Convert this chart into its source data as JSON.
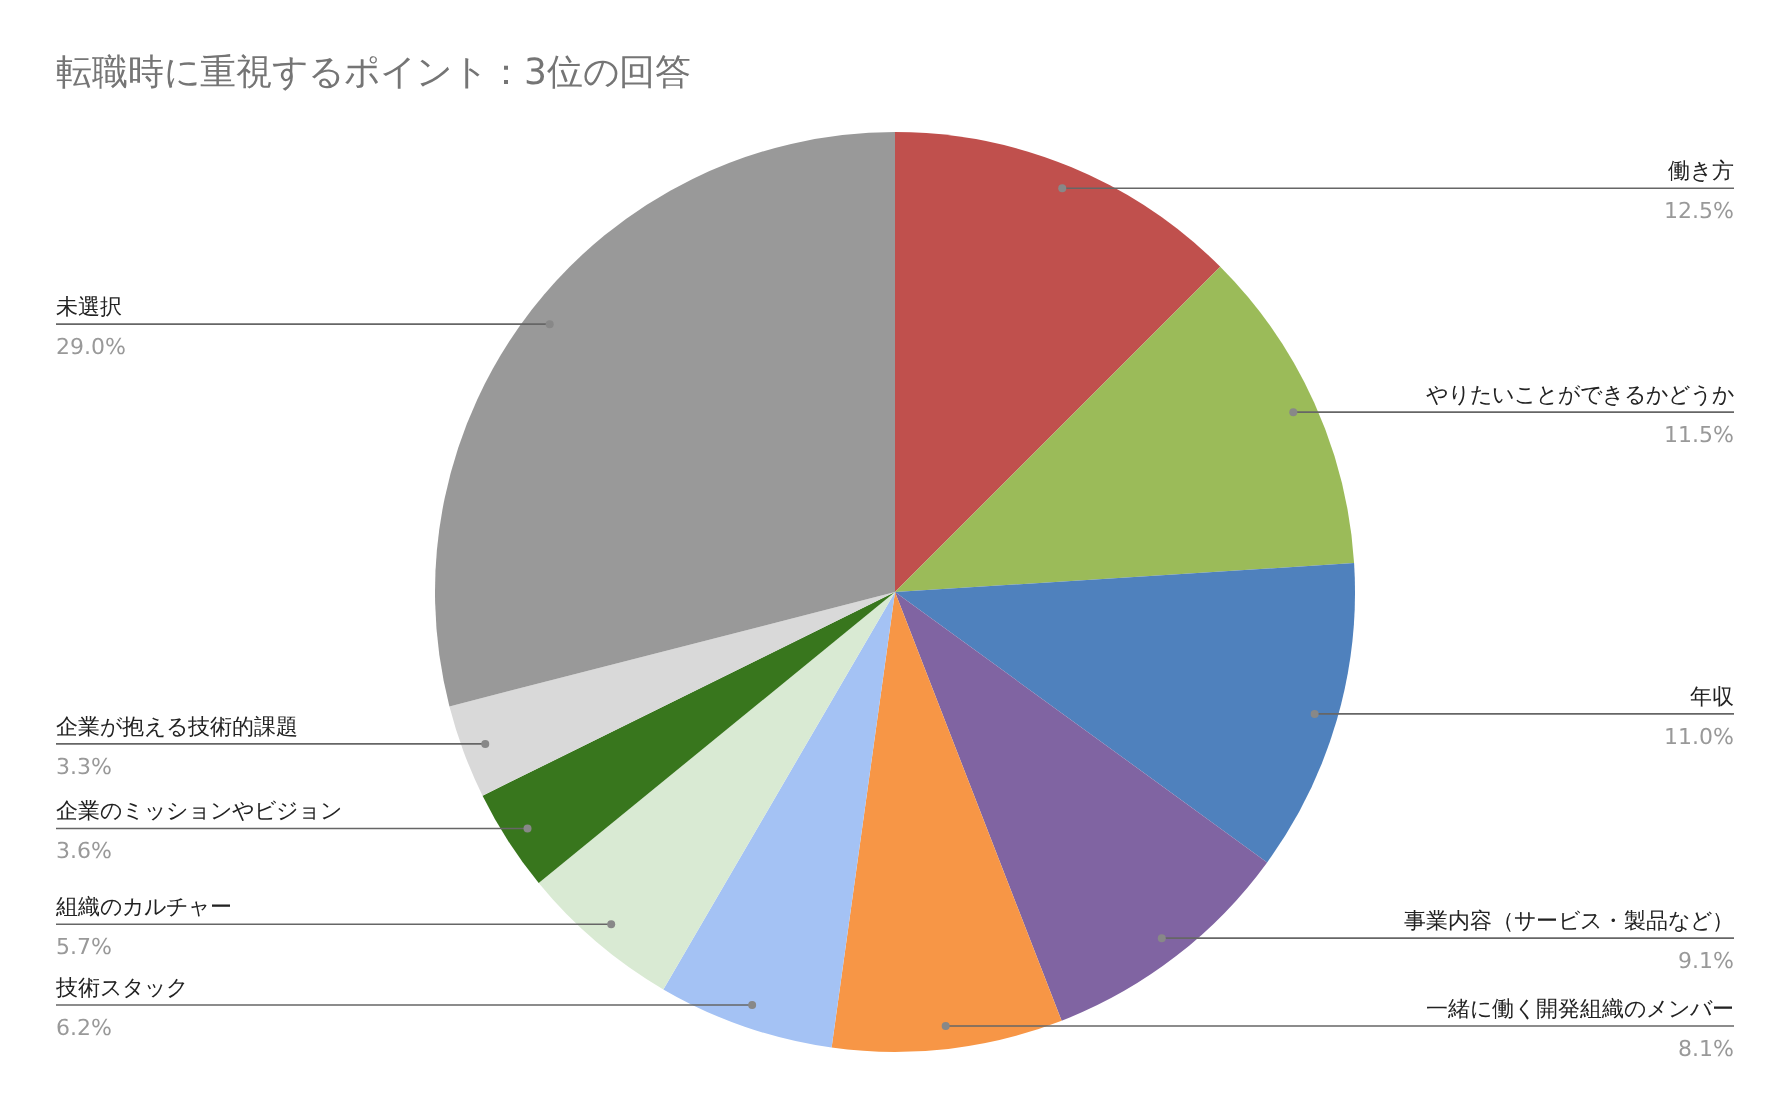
{
  "chart_data": {
    "type": "pie",
    "title": "転職時に重視するポイント：3位の回答",
    "categories": [
      "働き方",
      "やりたいことができるかどうか",
      "年収",
      "事業内容（サービス・製品など）",
      "一緒に働く開発組織のメンバー",
      "技術スタック",
      "組織のカルチャー",
      "企業のミッションやビジョン",
      "企業が抱える技術的課題",
      "未選択"
    ],
    "values": [
      12.5,
      11.5,
      11.0,
      9.1,
      8.1,
      6.2,
      5.7,
      3.6,
      3.3,
      29.0
    ],
    "value_labels": [
      "12.5%",
      "11.5%",
      "11.0%",
      "9.1%",
      "8.1%",
      "6.2%",
      "5.7%",
      "3.6%",
      "3.3%",
      "29.0%"
    ],
    "colors": [
      "#c0504d",
      "#9bbb59",
      "#4f81bd",
      "#8064a2",
      "#f79646",
      "#a4c2f4",
      "#d9ead3",
      "#38761d",
      "#d9d9d9",
      "#999999"
    ],
    "legend": false
  }
}
